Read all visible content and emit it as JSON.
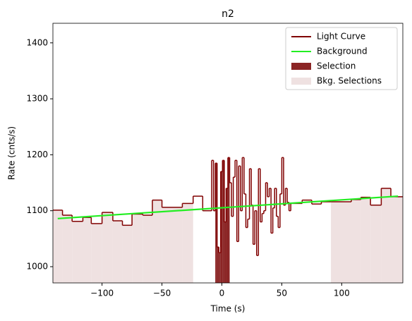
{
  "chart_data": {
    "type": "step",
    "title": "n2",
    "xlabel": "Time (s)",
    "ylabel": "Rate (cnts/s)",
    "xlim": [
      -141,
      151
    ],
    "ylim": [
      971,
      1435
    ],
    "xticks": [
      {
        "value": -100,
        "label": "−100"
      },
      {
        "value": -50,
        "label": "−50"
      },
      0,
      50,
      100
    ],
    "yticks": [
      1000,
      1100,
      1200,
      1300,
      1400
    ],
    "legend": "upper right",
    "series": [
      {
        "name": "Light Curve",
        "color": "#800000",
        "bins": [
          -141,
          -133,
          -125,
          -116,
          -109,
          -100,
          -91,
          -83,
          -75,
          -66,
          -58,
          -50,
          -33,
          -24,
          -16,
          -10,
          -8.5,
          -7,
          -5.5,
          -4,
          -2.5,
          -1,
          0.5,
          2,
          3.5,
          5,
          6.5,
          8,
          9.5,
          11,
          12.5,
          14,
          15.5,
          17,
          18.5,
          20,
          21.5,
          23,
          24.5,
          26,
          27.5,
          29,
          30.5,
          32,
          33.5,
          35,
          36.5,
          38,
          39.5,
          41,
          42.5,
          44,
          45.5,
          47,
          48.5,
          50,
          51.5,
          53,
          54.5,
          56,
          57.5,
          59,
          67,
          75,
          83,
          91,
          108,
          116,
          124,
          133,
          141,
          151
        ],
        "values": [
          1101,
          1092,
          1081,
          1088,
          1077,
          1097,
          1082,
          1074,
          1094,
          1092,
          1119,
          1106,
          1113,
          1126,
          1100,
          1100,
          1190,
          1100,
          1185,
          1035,
          1025,
          1170,
          1190,
          1080,
          1140,
          1195,
          1150,
          1090,
          1160,
          1190,
          1045,
          1180,
          1100,
          1195,
          1130,
          1070,
          1085,
          1175,
          1110,
          1040,
          1100,
          1020,
          1175,
          1080,
          1095,
          1100,
          1150,
          1125,
          1140,
          1060,
          1105,
          1140,
          1090,
          1070,
          1130,
          1195,
          1110,
          1140,
          1115,
          1100,
          1113,
          1113,
          1119,
          1112,
          1116,
          1116,
          1120,
          1124,
          1110,
          1140,
          1125
        ]
      },
      {
        "name": "Background",
        "color": "#22ee22",
        "x": [
          -137,
          147
        ],
        "values": [
          1086,
          1126
        ]
      },
      {
        "name": "Selection",
        "color": "#8b2525",
        "range": [
          -5.5,
          6.5
        ]
      },
      {
        "name": "Bkg. Selections",
        "color": "#efe1e1",
        "ranges": [
          [
            -141,
            -24
          ],
          [
            91,
            151
          ]
        ]
      }
    ]
  }
}
